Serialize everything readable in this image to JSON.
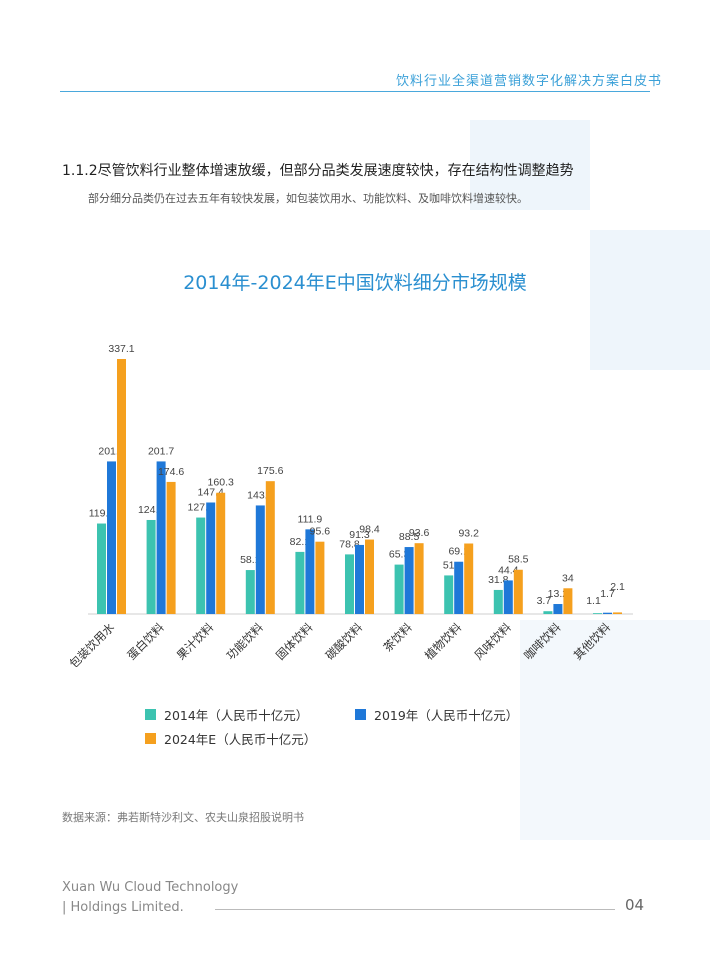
{
  "header": {
    "title": "饮料行业全渠道营销数字化解决方案白皮书"
  },
  "section": {
    "title": "1.1.2尽管饮料行业整体增速放缓，但部分品类发展速度较快，存在结构性调整趋势",
    "subtitle": "部分细分品类仍在过去五年有较快发展，如包装饮用水、功能饮料、及咖啡饮料增速较快。"
  },
  "chart_data": {
    "type": "bar",
    "title": "2014年-2024年E中国饮料细分市场规模",
    "categories": [
      "包装饮用水",
      "蛋白饮料",
      "果汁饮料",
      "功能饮料",
      "固体饮料",
      "碳酸饮料",
      "茶饮料",
      "植物饮料",
      "风味饮料",
      "咖啡饮料",
      "其他饮料"
    ],
    "series": [
      {
        "name": "2014年（人民币十亿元）",
        "color": "#3cc3b0",
        "values": [
          119.6,
          124.3,
          127.5,
          58.1,
          82.1,
          78.8,
          65.3,
          51,
          31.8,
          3.7,
          1.1
        ]
      },
      {
        "name": "2019年（人民币十亿元）",
        "color": "#1f78d8",
        "values": [
          201.7,
          201.7,
          147.4,
          143.5,
          111.9,
          91.3,
          88.5,
          69.1,
          44.4,
          13.2,
          1.7
        ]
      },
      {
        "name": "2024年E（人民币十亿元）",
        "color": "#f5a01e",
        "values": [
          337.1,
          174.6,
          160.3,
          175.6,
          95.6,
          98.4,
          93.6,
          93.2,
          58.5,
          34,
          2.1
        ]
      }
    ],
    "ylim": [
      0,
      350
    ],
    "xlabel": "",
    "ylabel": "",
    "legend_placement": "bottom"
  },
  "source": "数据来源：弗若斯特沙利文、农夫山泉招股说明书",
  "footer": {
    "company_line1": "Xuan Wu Cloud Technology",
    "company_line2": "| Holdings Limited.",
    "page": "04"
  }
}
